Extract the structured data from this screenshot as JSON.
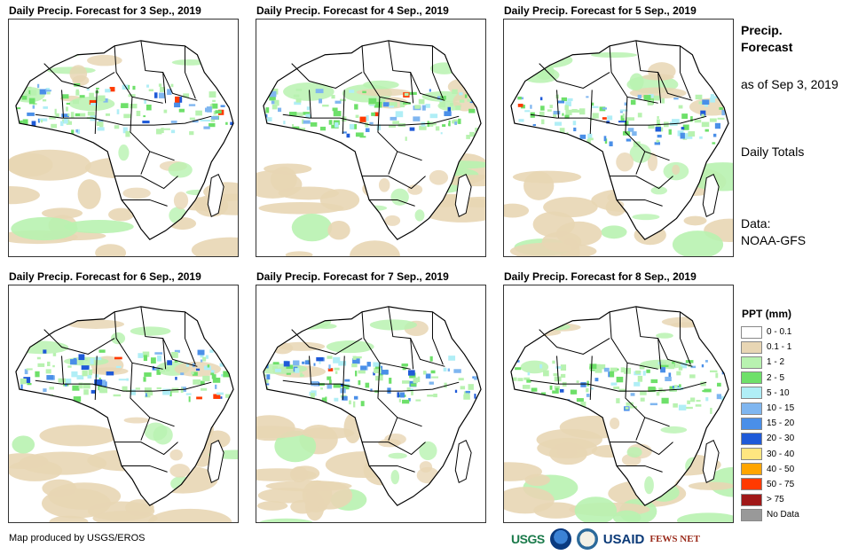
{
  "panels": [
    {
      "title": "Daily Precip. Forecast for 3 Sep., 2019"
    },
    {
      "title": "Daily Precip. Forecast for 4 Sep., 2019"
    },
    {
      "title": "Daily Precip. Forecast for 5 Sep., 2019"
    },
    {
      "title": "Daily Precip. Forecast for 6 Sep., 2019"
    },
    {
      "title": "Daily Precip. Forecast for 7 Sep., 2019"
    },
    {
      "title": "Daily Precip. Forecast for 8 Sep., 2019"
    }
  ],
  "side": {
    "title": "Precip. Forecast",
    "as_of": "as of Sep 3, 2019",
    "daily": "Daily Totals",
    "data": "Data: NOAA-GFS"
  },
  "legend": {
    "title": "PPT (mm)",
    "items": [
      {
        "label": "0 - 0.1",
        "color": "#ffffff"
      },
      {
        "label": "0.1 - 1",
        "color": "#e8d6b4"
      },
      {
        "label": "1 - 2",
        "color": "#b8f2b0"
      },
      {
        "label": "2 - 5",
        "color": "#6ee06a"
      },
      {
        "label": "5 - 10",
        "color": "#b0eef6"
      },
      {
        "label": "10 - 15",
        "color": "#7fb6f0"
      },
      {
        "label": "15 - 20",
        "color": "#4a8fe8"
      },
      {
        "label": "20 - 30",
        "color": "#1f5ad8"
      },
      {
        "label": "30 - 40",
        "color": "#ffe680"
      },
      {
        "label": "40 - 50",
        "color": "#ffa500"
      },
      {
        "label": "50 - 75",
        "color": "#ff3a00"
      },
      {
        "label": "> 75",
        "color": "#a01818"
      },
      {
        "label": "No Data",
        "color": "#999999"
      }
    ]
  },
  "credit": "Map produced by USGS/EROS",
  "logos": {
    "usgs": "USGS",
    "usaid": "USAID",
    "fews": "FEWS NET"
  }
}
